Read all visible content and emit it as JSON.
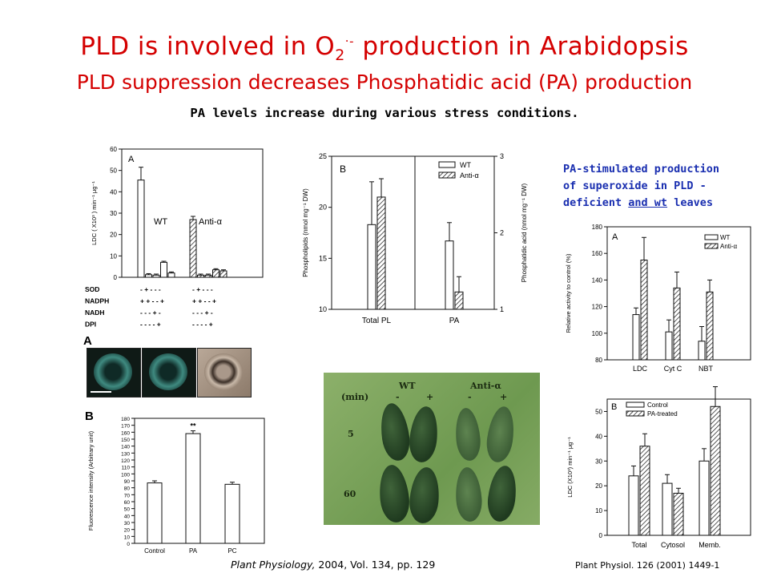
{
  "header": {
    "title_main_a": "PLD is involved in O",
    "title_sub": "2",
    "title_sup": "·-",
    "title_main_b": " production in Arabidopsis",
    "title_line2": "PLD suppression decreases Phosphatidic acid (PA) production",
    "subtitle": "PA levels increase during various stress conditions."
  },
  "note": {
    "line1": "PA-stimulated production",
    "line2": "of superoxide in PLD -",
    "line3a": "deficient ",
    "line3b": "and wt",
    "line3c": " leaves"
  },
  "citations": {
    "cite1_journal": "Plant Physiology,",
    "cite1_rest": " 2004, Vol. 134, pp. 129",
    "cite2": "Plant Physiol. 126 (2001) 1449-1"
  },
  "colors": {
    "title": "#d40000",
    "note": "#1a2fb0"
  },
  "panels": {
    "fig1A": {
      "panel": "A",
      "ylabel": "LDC ( X10³ ) min⁻¹ μg⁻¹",
      "group_labels": [
        "WT",
        "Anti-α"
      ],
      "rows": [
        {
          "name": "SOD",
          "wt": "- + - - -",
          "anti": "- + - - -"
        },
        {
          "name": "NADPH",
          "wt": "+ + - - +",
          "anti": "+ + - - +"
        },
        {
          "name": "NADH",
          "wt": "- - - + -",
          "anti": "- - - + -"
        },
        {
          "name": "DPI",
          "wt": "- - - - +",
          "anti": "- - - - +"
        }
      ]
    },
    "fig1B_cells": {
      "panel": "A"
    },
    "fig1B": {
      "panel": "B",
      "ylabel": "Fluorescence intensity (Arbitrary unit)",
      "sig": "**"
    },
    "fig2B": {
      "panel": "B",
      "ylabel_left": "Phospholipids (nmol mg⁻¹ DW)",
      "ylabel_right": "Phosphatidic acid (nmol mg⁻¹ DW)",
      "legend": [
        "WT",
        "Anti-α"
      ]
    },
    "fig3A": {
      "panel": "A",
      "ylabel": "Relative activity to control (%)",
      "legend": [
        "WT",
        "Anti-α"
      ]
    },
    "fig3B": {
      "panel": "B",
      "ylabel": "LDC (X10³) min⁻¹ μg⁻¹",
      "legend": [
        "Control",
        "PA-treated"
      ]
    },
    "photo": {
      "wt": "WT",
      "anti": "Anti-α",
      "min": "(min)",
      "minus": "-",
      "plus": "+",
      "t1": "5",
      "t2": "60"
    }
  },
  "chart_data": [
    {
      "type": "bar",
      "panel": "A",
      "ylabel": "LDC ( X10³ ) min⁻¹ μg⁻¹",
      "ylim": [
        0,
        60
      ],
      "yticks": [
        0,
        10,
        20,
        30,
        40,
        50,
        60
      ],
      "groups": [
        "WT",
        "Anti-α"
      ],
      "series": [
        {
          "name": "WT",
          "values": [
            45.5,
            1.2,
            1.0,
            7.0,
            2.0
          ],
          "errors": [
            6,
            0.5,
            0.5,
            0.5,
            0.5
          ]
        },
        {
          "name": "Anti-α",
          "values": [
            27.0,
            1.0,
            1.0,
            3.5,
            3.0
          ],
          "errors": [
            1.5,
            0.5,
            0.5,
            0.5,
            0.5
          ]
        }
      ]
    },
    {
      "type": "bar",
      "panel": "B",
      "ylabel": "Fluorescence intensity (Arbitrary unit)",
      "categories": [
        "Control",
        "PA",
        "PC"
      ],
      "values": [
        87,
        158,
        85
      ],
      "errors": [
        3,
        4,
        3
      ],
      "ylim": [
        0,
        180
      ],
      "yticks": [
        0,
        10,
        20,
        30,
        40,
        50,
        60,
        70,
        80,
        90,
        100,
        110,
        120,
        130,
        140,
        150,
        160,
        170,
        180
      ]
    },
    {
      "type": "bar",
      "panel": "B",
      "categories": [
        "Total PL",
        "PA"
      ],
      "series": [
        {
          "name": "WT",
          "values": [
            18.3,
            16.7
          ],
          "errors": [
            4.2,
            1.8
          ],
          "axis": "left"
        },
        {
          "name": "Anti-α",
          "values": [
            21,
            11.7
          ],
          "errors": [
            1.8,
            1.5
          ],
          "axis": "left"
        }
      ],
      "ylabel": "Phospholipids (nmol mg⁻¹ DW)",
      "ylim": [
        10,
        25
      ],
      "yticks": [
        10,
        15,
        20,
        25
      ],
      "y2label": "Phosphatidic acid (nmol mg⁻¹ DW)",
      "y2lim": [
        1,
        3
      ],
      "y2ticks": [
        1,
        2,
        3
      ]
    },
    {
      "type": "bar",
      "panel": "A",
      "categories": [
        "LDC",
        "Cyt C",
        "NBT"
      ],
      "series": [
        {
          "name": "WT",
          "values": [
            114,
            101,
            94
          ],
          "errors": [
            5,
            9,
            11
          ]
        },
        {
          "name": "Anti-α",
          "values": [
            155,
            134,
            131
          ],
          "errors": [
            17,
            12,
            9
          ]
        }
      ],
      "ylabel": "Relative activity to control (%)",
      "ylim": [
        80,
        180
      ],
      "yticks": [
        80,
        100,
        120,
        140,
        160,
        180
      ]
    },
    {
      "type": "bar",
      "panel": "B",
      "categories": [
        "Total",
        "Cytosol",
        "Memb."
      ],
      "series": [
        {
          "name": "Control",
          "values": [
            24,
            21,
            30
          ],
          "errors": [
            4,
            3.5,
            5
          ]
        },
        {
          "name": "PA-treated",
          "values": [
            36,
            17,
            52
          ],
          "errors": [
            5,
            2,
            8
          ]
        }
      ],
      "ylabel": "LDC (X10³) min⁻¹ μg⁻¹",
      "ylim": [
        0,
        55
      ],
      "yticks": [
        0,
        10,
        20,
        30,
        40,
        50
      ]
    }
  ]
}
